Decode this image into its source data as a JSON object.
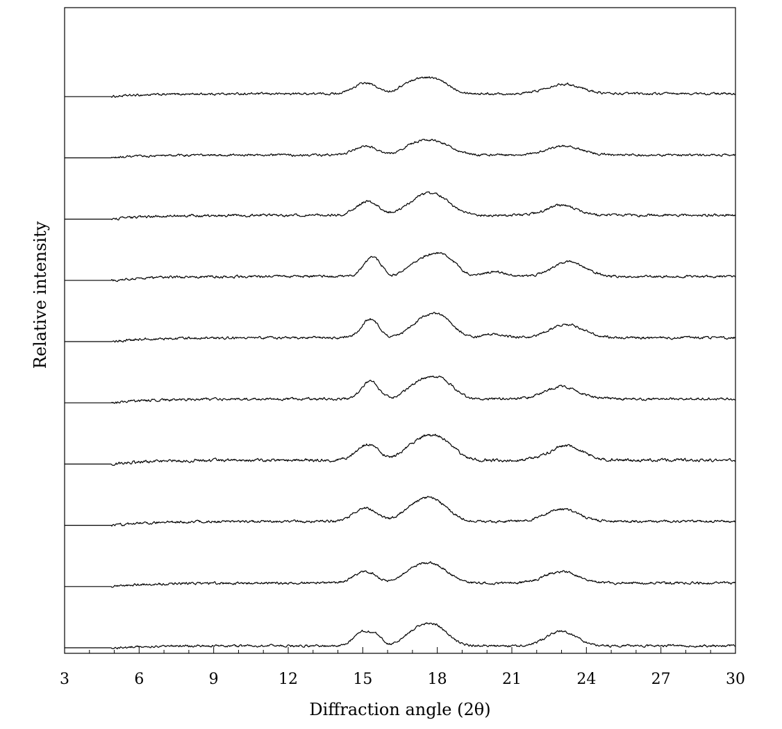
{
  "chart_data": {
    "type": "line",
    "layout": "stacked-offset",
    "xlabel": "Diffraction angle (2θ)",
    "ylabel": "Relative intensity",
    "xlim": [
      3,
      30
    ],
    "x_major_ticks": [
      3,
      6,
      9,
      12,
      15,
      18,
      21,
      24,
      27,
      30
    ],
    "x_tick_labels": [
      "3",
      "6",
      "9",
      "12",
      "15",
      "18",
      "21",
      "24",
      "27",
      "30"
    ],
    "y_tick_labels": false,
    "grid": false,
    "legend": "none",
    "series_count": 10,
    "series": [
      {
        "baseline_rank": 10,
        "peaks": [
          {
            "x": 15.1,
            "h": 0.55,
            "w": 0.45
          },
          {
            "x": 17.1,
            "h": 0.6,
            "w": 0.6
          },
          {
            "x": 18.0,
            "h": 0.55,
            "w": 0.55
          },
          {
            "x": 23.1,
            "h": 0.5,
            "w": 0.7
          }
        ],
        "noise": 0.09,
        "plateau": 0.15
      },
      {
        "baseline_rank": 9,
        "peaks": [
          {
            "x": 15.1,
            "h": 0.45,
            "w": 0.45
          },
          {
            "x": 17.2,
            "h": 0.55,
            "w": 0.6
          },
          {
            "x": 18.1,
            "h": 0.5,
            "w": 0.55
          },
          {
            "x": 23.1,
            "h": 0.45,
            "w": 0.7
          }
        ],
        "noise": 0.09,
        "plateau": 0.15
      },
      {
        "baseline_rank": 8,
        "peaks": [
          {
            "x": 15.2,
            "h": 0.7,
            "w": 0.45
          },
          {
            "x": 17.3,
            "h": 0.75,
            "w": 0.6
          },
          {
            "x": 18.1,
            "h": 0.7,
            "w": 0.55
          },
          {
            "x": 23.0,
            "h": 0.5,
            "w": 0.6
          }
        ],
        "noise": 0.1,
        "plateau": 0.2
      },
      {
        "baseline_rank": 7,
        "peaks": [
          {
            "x": 15.4,
            "h": 1.0,
            "w": 0.35
          },
          {
            "x": 17.4,
            "h": 0.8,
            "w": 0.55
          },
          {
            "x": 18.3,
            "h": 0.9,
            "w": 0.5
          },
          {
            "x": 20.3,
            "h": 0.25,
            "w": 0.4
          },
          {
            "x": 23.3,
            "h": 0.75,
            "w": 0.65
          }
        ],
        "noise": 0.1,
        "plateau": 0.2
      },
      {
        "baseline_rank": 6,
        "peaks": [
          {
            "x": 15.3,
            "h": 0.95,
            "w": 0.35
          },
          {
            "x": 17.4,
            "h": 0.8,
            "w": 0.55
          },
          {
            "x": 18.2,
            "h": 0.85,
            "w": 0.5
          },
          {
            "x": 20.3,
            "h": 0.2,
            "w": 0.4
          },
          {
            "x": 23.2,
            "h": 0.7,
            "w": 0.65
          }
        ],
        "noise": 0.1,
        "plateau": 0.2
      },
      {
        "baseline_rank": 5,
        "peaks": [
          {
            "x": 15.3,
            "h": 0.9,
            "w": 0.35
          },
          {
            "x": 17.3,
            "h": 0.8,
            "w": 0.55
          },
          {
            "x": 18.2,
            "h": 0.85,
            "w": 0.5
          },
          {
            "x": 23.0,
            "h": 0.65,
            "w": 0.65
          }
        ],
        "noise": 0.1,
        "plateau": 0.2
      },
      {
        "baseline_rank": 4,
        "peaks": [
          {
            "x": 15.2,
            "h": 0.8,
            "w": 0.45
          },
          {
            "x": 17.3,
            "h": 0.9,
            "w": 0.6
          },
          {
            "x": 18.2,
            "h": 0.85,
            "w": 0.55
          },
          {
            "x": 23.2,
            "h": 0.75,
            "w": 0.65
          }
        ],
        "noise": 0.12,
        "plateau": 0.2
      },
      {
        "baseline_rank": 3,
        "peaks": [
          {
            "x": 15.1,
            "h": 0.7,
            "w": 0.45
          },
          {
            "x": 17.2,
            "h": 0.8,
            "w": 0.6
          },
          {
            "x": 18.0,
            "h": 0.75,
            "w": 0.55
          },
          {
            "x": 23.0,
            "h": 0.65,
            "w": 0.65
          }
        ],
        "noise": 0.1,
        "plateau": 0.2
      },
      {
        "baseline_rank": 2,
        "peaks": [
          {
            "x": 15.1,
            "h": 0.6,
            "w": 0.45
          },
          {
            "x": 17.2,
            "h": 0.7,
            "w": 0.6
          },
          {
            "x": 18.0,
            "h": 0.65,
            "w": 0.55
          },
          {
            "x": 23.0,
            "h": 0.6,
            "w": 0.65
          }
        ],
        "noise": 0.1,
        "plateau": 0.18
      },
      {
        "baseline_rank": 1,
        "peaks": [
          {
            "x": 15.0,
            "h": 0.75,
            "w": 0.35
          },
          {
            "x": 15.6,
            "h": 0.4,
            "w": 0.25
          },
          {
            "x": 17.2,
            "h": 0.75,
            "w": 0.55
          },
          {
            "x": 18.0,
            "h": 0.8,
            "w": 0.5
          },
          {
            "x": 23.0,
            "h": 0.75,
            "w": 0.6
          }
        ],
        "noise": 0.09,
        "plateau": 0.1
      }
    ],
    "trace_color": "#000000",
    "frame_color": "#000000"
  }
}
